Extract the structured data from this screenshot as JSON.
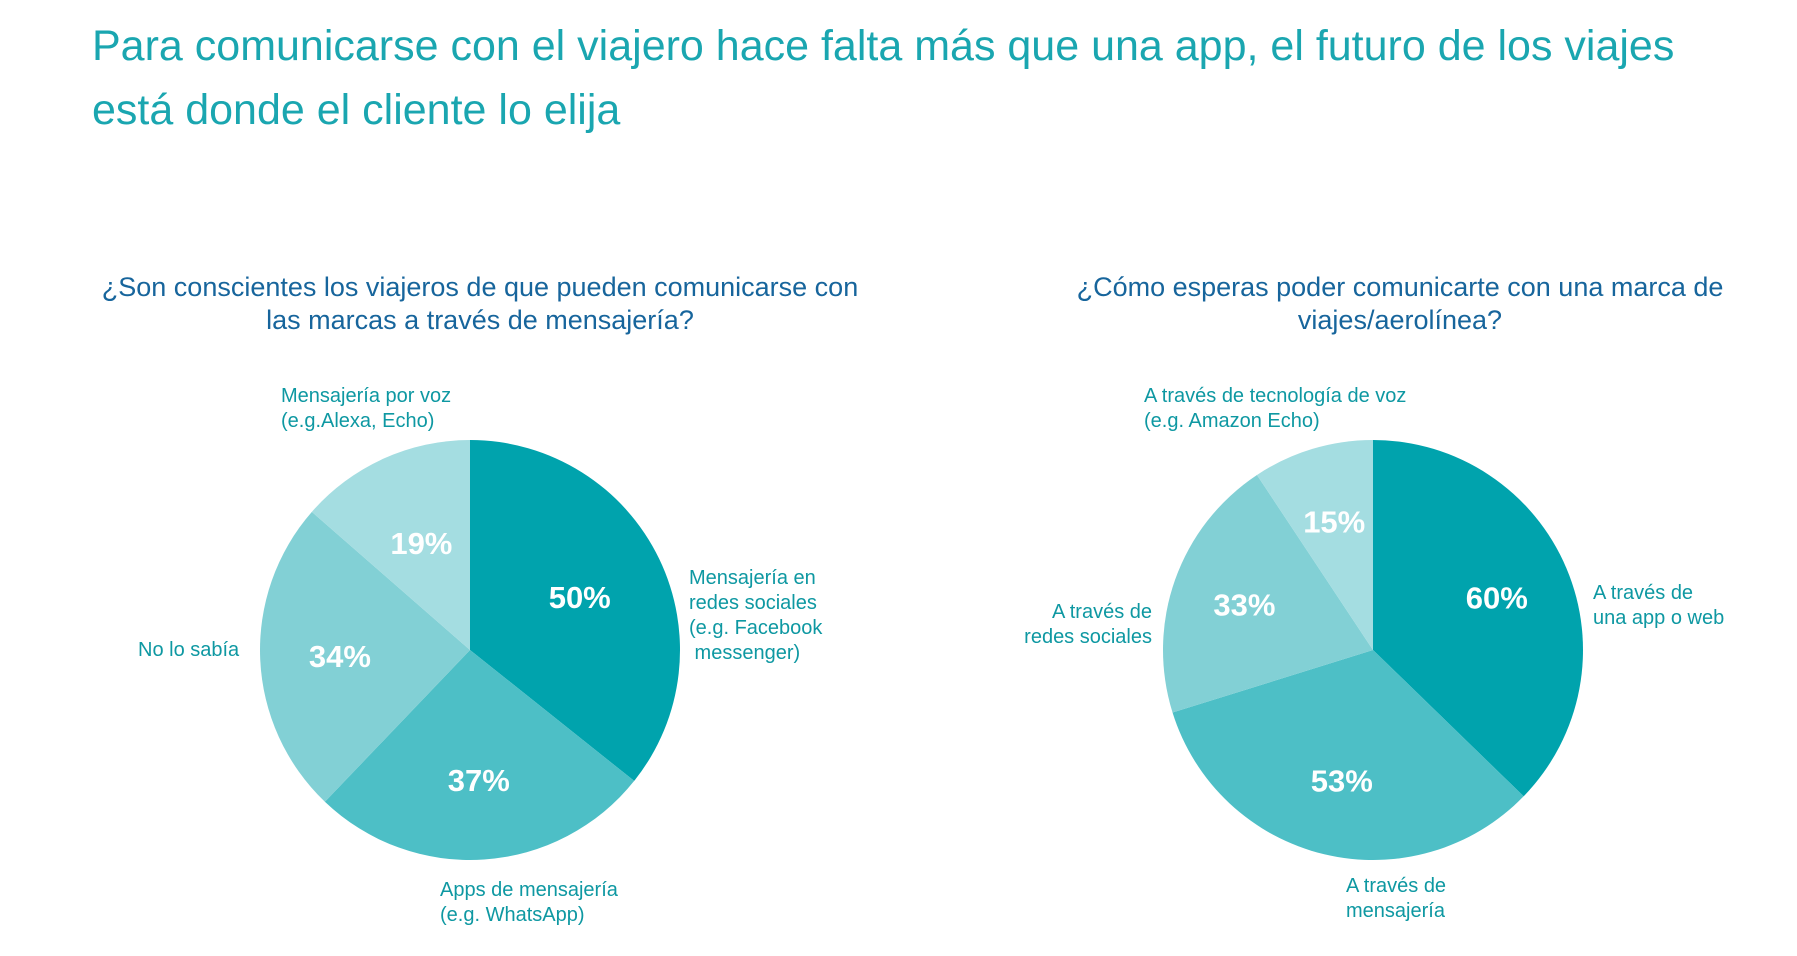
{
  "title": "Para comunicarse con el viajero hace falta más que una app, el futuro de los viajes está donde el cliente lo elija",
  "colors": {
    "title": "#1aa6b0",
    "chart_title": "#17659c",
    "label": "#0e98a2",
    "percent": "#ffffff"
  },
  "chart_data": [
    {
      "type": "pie",
      "title": "¿Son conscientes los viajeros de que pueden comunicarse con las marcas a través de mensajería?",
      "slices": [
        {
          "label_lines": [
            "Mensajería en",
            "redes sociales",
            "(e.g. Facebook",
            " messenger)"
          ],
          "value": 50,
          "value_label": "50%",
          "color": "#00a3ad"
        },
        {
          "label_lines": [
            "Apps de mensajería",
            "(e.g. WhatsApp)"
          ],
          "value": 37,
          "value_label": "37%",
          "color": "#4dbfc6"
        },
        {
          "label_lines": [
            "No lo sabía"
          ],
          "value": 34,
          "value_label": "34%",
          "color": "#82d0d5"
        },
        {
          "label_lines": [
            "Mensajería por voz",
            "(e.g.Alexa, Echo)"
          ],
          "value": 19,
          "value_label": "19%",
          "color": "#a4dde1"
        }
      ]
    },
    {
      "type": "pie",
      "title": "¿Cómo esperas poder comunicarte con una marca de viajes/aerolínea?",
      "slices": [
        {
          "label_lines": [
            "A través de",
            "una app o web"
          ],
          "value": 60,
          "value_label": "60%",
          "color": "#00a3ad"
        },
        {
          "label_lines": [
            "A través de",
            "mensajería"
          ],
          "value": 53,
          "value_label": "53%",
          "color": "#4dbfc6"
        },
        {
          "label_lines": [
            "A través de",
            "redes sociales"
          ],
          "value": 33,
          "value_label": "33%",
          "color": "#82d0d5"
        },
        {
          "label_lines": [
            "A través de tecnología de voz",
            "(e.g. Amazon Echo)"
          ],
          "value": 15,
          "value_label": "15%",
          "color": "#a4dde1"
        }
      ]
    }
  ]
}
